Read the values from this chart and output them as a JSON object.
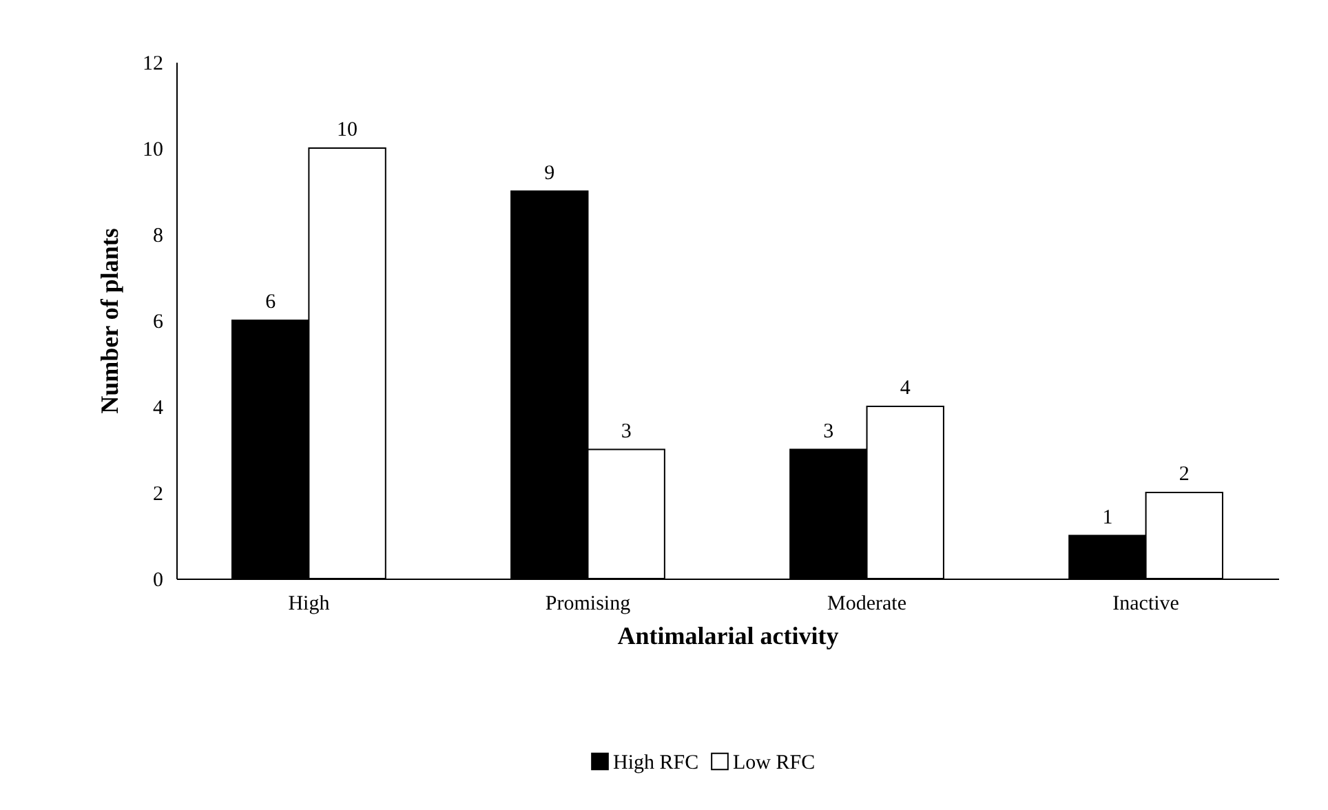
{
  "chart_data": {
    "type": "bar",
    "xlabel": "Antimalarial activity",
    "ylabel": "Number of plants",
    "categories": [
      "High",
      "Promising",
      "Moderate",
      "Inactive"
    ],
    "series": [
      {
        "name": "High RFC",
        "color": "#000000",
        "values": [
          6,
          9,
          3,
          1
        ]
      },
      {
        "name": "Low RFC",
        "color": "#ffffff",
        "values": [
          10,
          3,
          4,
          2
        ]
      }
    ],
    "ylim": [
      0,
      12
    ],
    "yticks": [
      0,
      2,
      4,
      6,
      8,
      10,
      12
    ],
    "grid": false,
    "legend": "bottom",
    "data_labels": true
  }
}
